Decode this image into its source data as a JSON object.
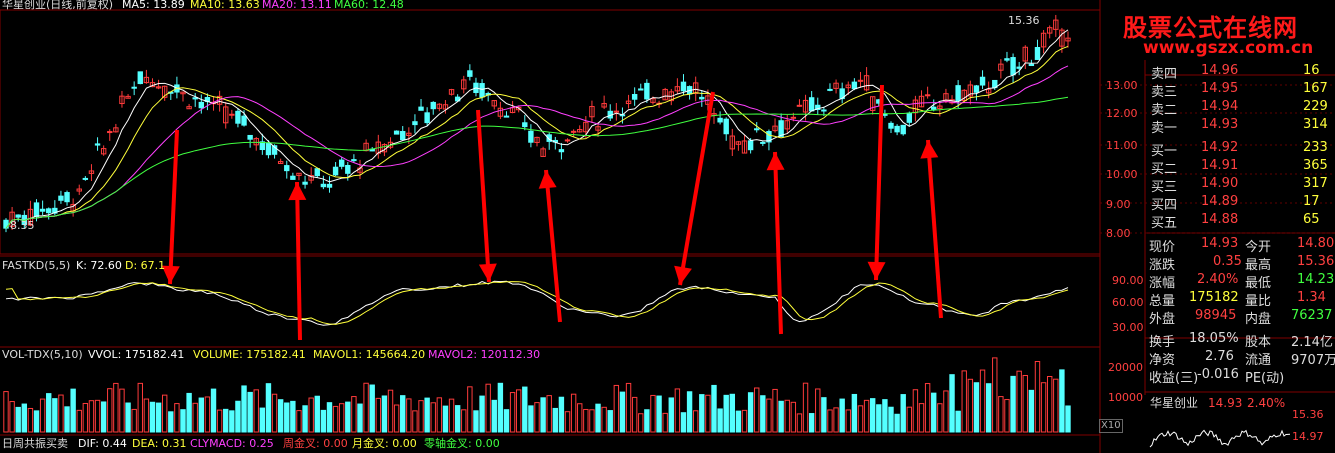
{
  "top_bar": {
    "title": "华星创业(日线,前复权)",
    "ma5": "MA5: 13.89",
    "ma10": "MA10: 13.63",
    "ma20": "MA20: 13.11",
    "ma60": "MA60: 12.48"
  },
  "main_chart": {
    "high_label": "15.36",
    "low_label": "8.35",
    "y_ticks": [
      "13.00",
      "12.00",
      "11.00",
      "10.00",
      "9.00",
      "8.00"
    ]
  },
  "kd_panel": {
    "title": "FASTKD(5,5)",
    "k": "K: 72.60",
    "d": "D: 67.1",
    "y_ticks": [
      "90.00",
      "60.00",
      "30.00"
    ]
  },
  "vol_panel": {
    "title": "VOL-TDX(5,10)",
    "vvol": "VVOL: 175182.41",
    "volume": "VOLUME: 175182.41",
    "mavol1": "MAVOL1: 145664.20",
    "mavol2": "MAVOL2: 120112.30",
    "y_ticks": [
      "20000",
      "10000"
    ],
    "unit": "X10"
  },
  "bottom_bar": {
    "name": "日周共振买卖",
    "dif": "DIF: 0.44",
    "dea": "DEA: 0.31",
    "clymacd": "CLYMACD: 0.25",
    "week": "周金叉: 0.00",
    "month": "月金叉: 0.00",
    "zero": "零轴金叉: 0.00"
  },
  "watermark": {
    "line1": "股票公式在线网",
    "line2": "www.gszx.com.cn"
  },
  "quote_panel": {
    "asks": [
      {
        "label": "卖四",
        "price": "14.96",
        "vol": "16"
      },
      {
        "label": "卖三",
        "price": "14.95",
        "vol": "167"
      },
      {
        "label": "卖二",
        "price": "14.94",
        "vol": "229"
      },
      {
        "label": "卖一",
        "price": "14.93",
        "vol": "314"
      }
    ],
    "bids": [
      {
        "label": "买一",
        "price": "14.92",
        "vol": "233"
      },
      {
        "label": "买二",
        "price": "14.91",
        "vol": "365"
      },
      {
        "label": "买三",
        "price": "14.90",
        "vol": "317"
      },
      {
        "label": "买四",
        "price": "14.89",
        "vol": "17"
      },
      {
        "label": "买五",
        "price": "14.88",
        "vol": "65"
      }
    ],
    "stats": [
      {
        "l1": "现价",
        "v1": "14.93",
        "l2": "今开",
        "v2": "14.80"
      },
      {
        "l1": "涨跌",
        "v1": "0.35",
        "l2": "最高",
        "v2": "15.36"
      },
      {
        "l1": "涨幅",
        "v1": "2.40%",
        "l2": "最低",
        "v2": "14.23"
      },
      {
        "l1": "总量",
        "v1": "175182",
        "l2": "量比",
        "v2": "1.34"
      },
      {
        "l1": "外盘",
        "v1": "98945",
        "l2": "内盘",
        "v2": "76237"
      },
      {
        "l1": "换手",
        "v1": "18.05%",
        "l2": "股本",
        "v2": "2.14亿"
      },
      {
        "l1": "净资",
        "v1": "2.76",
        "l2": "流通",
        "v2": "9707万"
      },
      {
        "l1": "收益(三)",
        "v1": "-0.016",
        "l2": "PE(动)",
        "v2": ""
      }
    ],
    "mini": {
      "name": "华星创业",
      "price": "14.93",
      "pct": "2.40%",
      "hi": "15.36",
      "cur": "14.97"
    }
  },
  "colors": {
    "up": "#ff3b3b",
    "down": "#54ffff",
    "ma5": "#ffffff",
    "ma10": "#ffff3b",
    "ma20": "#ff40ff",
    "ma60": "#40ff40",
    "arrow": "#ff0000"
  }
}
